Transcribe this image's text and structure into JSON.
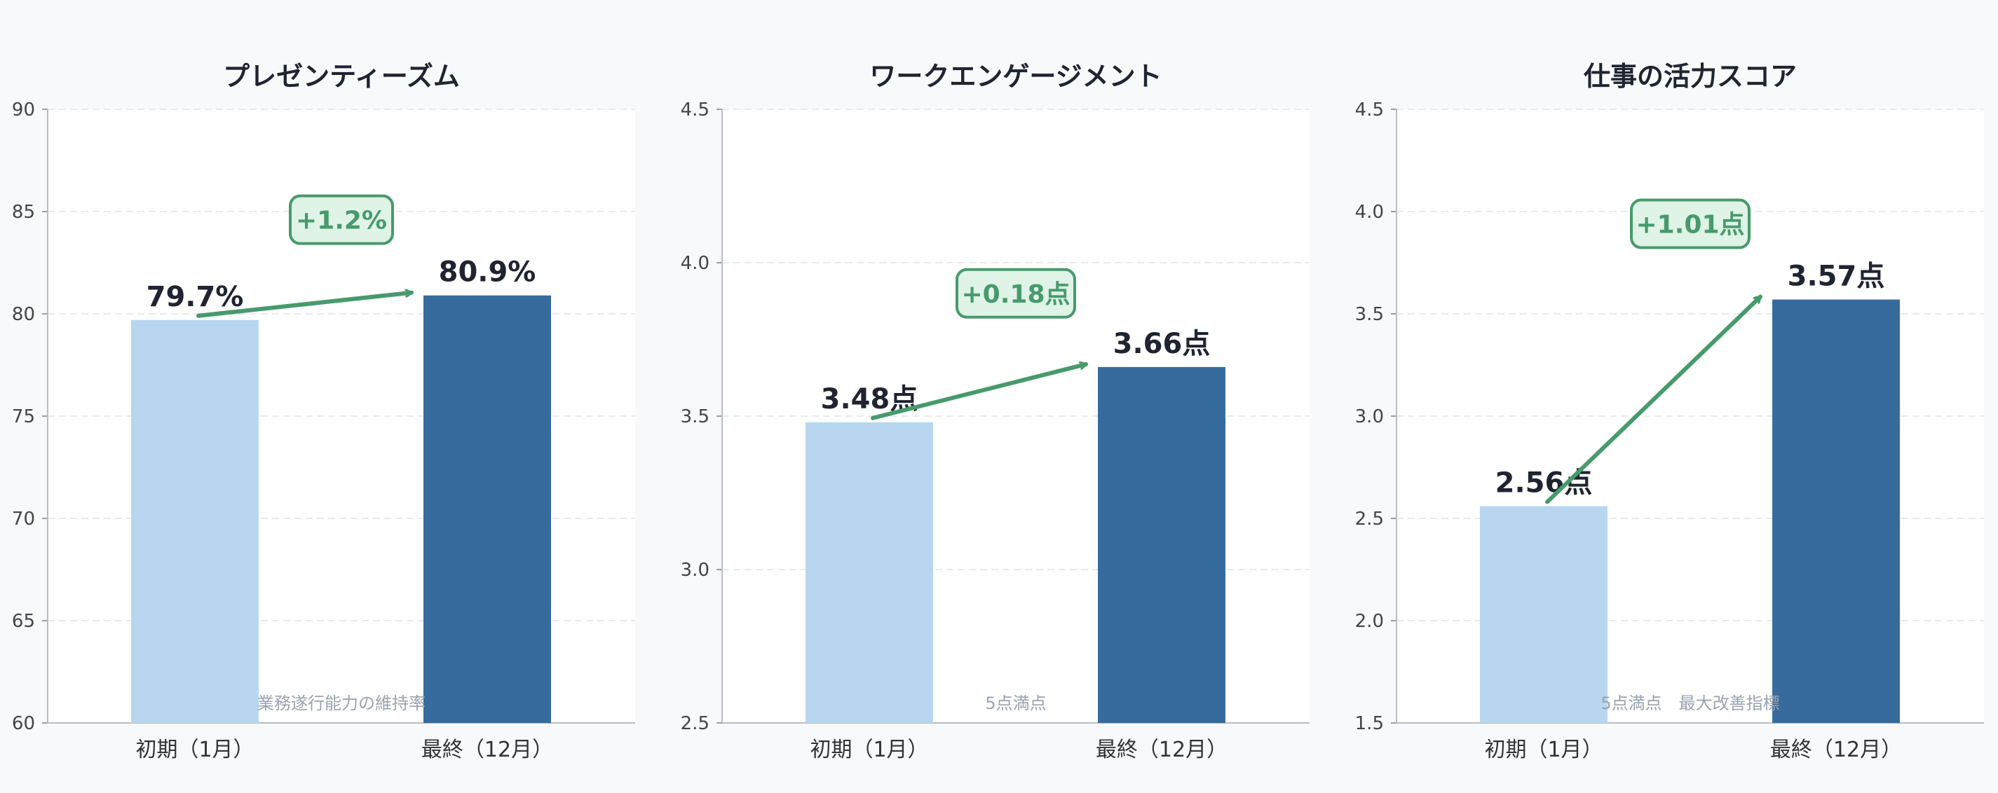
{
  "chart_data": [
    {
      "type": "bar",
      "title": "プレゼンティーズム",
      "categories": [
        "初期（1月）",
        "最終（12月）"
      ],
      "values": [
        79.7,
        80.9
      ],
      "value_labels": [
        "79.7%",
        "80.9%"
      ],
      "change_label": "+1.2%",
      "note": "業務遂行能力の維持率",
      "ylim": [
        60,
        90
      ],
      "yticks": [
        60,
        65,
        70,
        75,
        80,
        85,
        90
      ],
      "ytick_labels": [
        "60",
        "65",
        "70",
        "75",
        "80",
        "85",
        "90"
      ],
      "badge_y": 84.6,
      "grid": true
    },
    {
      "type": "bar",
      "title": "ワークエンゲージメント",
      "categories": [
        "初期（1月）",
        "最終（12月）"
      ],
      "values": [
        3.48,
        3.66
      ],
      "value_labels": [
        "3.48点",
        "3.66点"
      ],
      "change_label": "+0.18点",
      "note": "5点満点",
      "ylim": [
        2.5,
        4.5
      ],
      "yticks": [
        2.5,
        3.0,
        3.5,
        4.0,
        4.5
      ],
      "ytick_labels": [
        "2.5",
        "3.0",
        "3.5",
        "4.0",
        "4.5"
      ],
      "badge_y": 3.9,
      "grid": true
    },
    {
      "type": "bar",
      "title": "仕事の活力スコア",
      "categories": [
        "初期（1月）",
        "最終（12月）"
      ],
      "values": [
        2.56,
        3.57
      ],
      "value_labels": [
        "2.56点",
        "3.57点"
      ],
      "change_label": "+1.01点",
      "note": "5点満点　最大改善指標",
      "ylim": [
        1.5,
        4.5
      ],
      "yticks": [
        1.5,
        2.0,
        2.5,
        3.0,
        3.5,
        4.0,
        4.5
      ],
      "ytick_labels": [
        "1.5",
        "2.0",
        "2.5",
        "3.0",
        "3.5",
        "4.0",
        "4.5"
      ],
      "badge_y": 3.94,
      "grid": true
    }
  ],
  "colors": {
    "bar_initial": "#b8d6ef",
    "bar_final": "#376b9d",
    "accent": "#479a6c",
    "badge_fill": "#dff3e6",
    "text": "#1f2430",
    "axis_text": "#444444",
    "note_text": "#9aa3ad",
    "grid": "#e8eaed"
  }
}
